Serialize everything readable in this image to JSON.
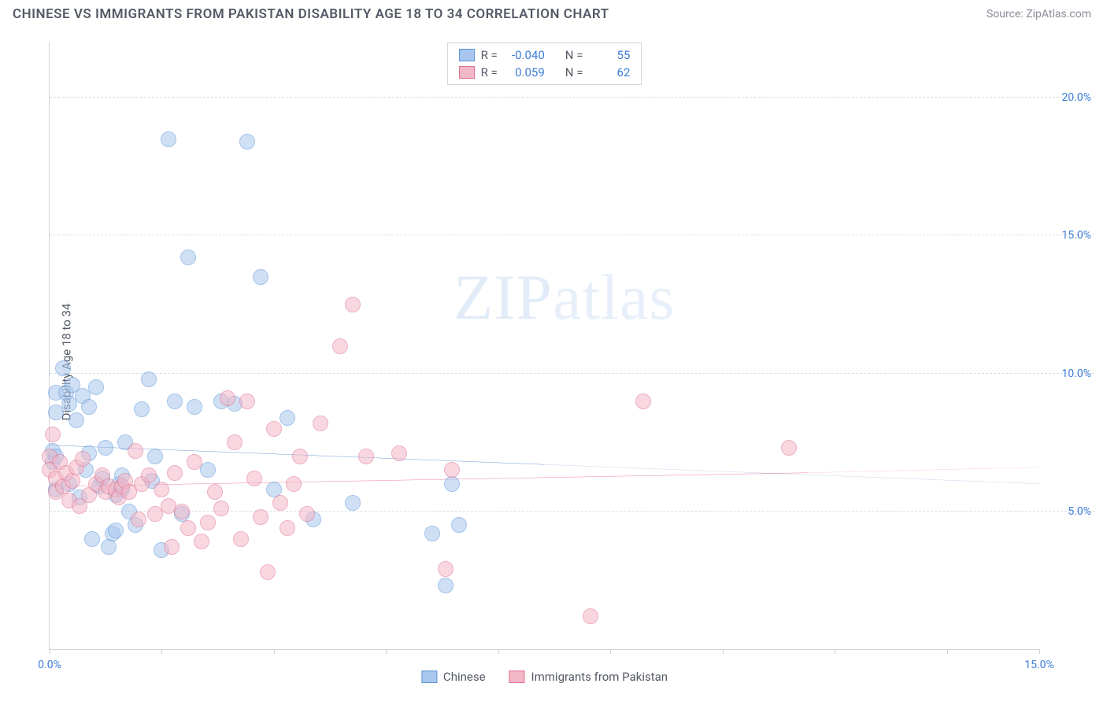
{
  "title": "CHINESE VS IMMIGRANTS FROM PAKISTAN DISABILITY AGE 18 TO 34 CORRELATION CHART",
  "source": "Source: ZipAtlas.com",
  "ylabel": "Disability Age 18 to 34",
  "watermark_a": "ZIP",
  "watermark_b": "atlas",
  "chart": {
    "type": "scatter",
    "xlim": [
      0,
      15
    ],
    "ylim": [
      0,
      22
    ],
    "x_ticks": [
      0,
      1.7,
      3.4,
      5.1,
      6.8,
      8.5,
      10.2,
      11.9,
      13.6,
      15
    ],
    "x_tick_labels": {
      "0": "0.0%",
      "15": "15.0%"
    },
    "y_gridlines": [
      5,
      10,
      15,
      20
    ],
    "y_tick_labels": {
      "5": "5.0%",
      "10": "10.0%",
      "15": "15.0%",
      "20": "20.0%"
    },
    "grid_color": "#d9dde4",
    "axis_color": "#ccd0d8",
    "background_color": "#ffffff",
    "tick_label_color": "#3b7dd8",
    "marker_radius": 10,
    "marker_opacity": 0.55,
    "series": [
      {
        "id": "chinese",
        "label": "Chinese",
        "color_fill": "#a9c7ee",
        "color_stroke": "#5b93d6",
        "trend_color": "#2f6fc7",
        "r_label": "R =",
        "r_value": "-0.040",
        "n_label": "N =",
        "n_value": "55",
        "trend": {
          "x1": 0,
          "y1": 7.4,
          "x2_solid": 7.5,
          "y2_solid": 6.7,
          "x2": 15,
          "y2": 6.0
        },
        "points": [
          [
            0.05,
            7.2
          ],
          [
            0.05,
            6.8
          ],
          [
            0.1,
            9.3
          ],
          [
            0.1,
            8.6
          ],
          [
            0.1,
            7.0
          ],
          [
            0.1,
            5.8
          ],
          [
            0.2,
            10.2
          ],
          [
            0.25,
            9.3
          ],
          [
            0.3,
            8.9
          ],
          [
            0.3,
            6.0
          ],
          [
            0.35,
            9.6
          ],
          [
            0.4,
            8.3
          ],
          [
            0.45,
            5.5
          ],
          [
            0.5,
            9.2
          ],
          [
            0.55,
            6.5
          ],
          [
            0.6,
            8.8
          ],
          [
            0.6,
            7.1
          ],
          [
            0.65,
            4.0
          ],
          [
            0.7,
            9.5
          ],
          [
            0.75,
            5.9
          ],
          [
            0.8,
            6.2
          ],
          [
            0.85,
            7.3
          ],
          [
            0.9,
            3.7
          ],
          [
            0.95,
            4.2
          ],
          [
            1.0,
            5.6
          ],
          [
            1.0,
            4.3
          ],
          [
            1.05,
            6.0
          ],
          [
            1.1,
            5.8
          ],
          [
            1.1,
            6.3
          ],
          [
            1.15,
            7.5
          ],
          [
            1.2,
            5.0
          ],
          [
            1.3,
            4.5
          ],
          [
            1.4,
            8.7
          ],
          [
            1.5,
            9.8
          ],
          [
            1.55,
            6.1
          ],
          [
            1.6,
            7.0
          ],
          [
            1.7,
            3.6
          ],
          [
            1.8,
            18.5
          ],
          [
            1.9,
            9.0
          ],
          [
            2.0,
            4.9
          ],
          [
            2.1,
            14.2
          ],
          [
            2.2,
            8.8
          ],
          [
            2.4,
            6.5
          ],
          [
            2.6,
            9.0
          ],
          [
            2.8,
            8.9
          ],
          [
            3.0,
            18.4
          ],
          [
            3.2,
            13.5
          ],
          [
            3.4,
            5.8
          ],
          [
            3.6,
            8.4
          ],
          [
            4.0,
            4.7
          ],
          [
            4.6,
            5.3
          ],
          [
            5.8,
            4.2
          ],
          [
            6.0,
            2.3
          ],
          [
            6.1,
            6.0
          ],
          [
            6.2,
            4.5
          ]
        ]
      },
      {
        "id": "pakistan",
        "label": "Immigrants from Pakistan",
        "color_fill": "#f3b8c7",
        "color_stroke": "#e06f8f",
        "trend_color": "#e94b7a",
        "r_label": "R =",
        "r_value": "0.059",
        "n_label": "N =",
        "n_value": "62",
        "trend": {
          "x1": 0,
          "y1": 5.9,
          "x2_solid": 11.5,
          "y2_solid": 6.4,
          "x2": 15,
          "y2": 6.6
        },
        "points": [
          [
            0.0,
            7.0
          ],
          [
            0.0,
            6.5
          ],
          [
            0.05,
            7.8
          ],
          [
            0.1,
            6.2
          ],
          [
            0.1,
            5.7
          ],
          [
            0.15,
            6.8
          ],
          [
            0.2,
            5.9
          ],
          [
            0.25,
            6.4
          ],
          [
            0.3,
            5.4
          ],
          [
            0.35,
            6.1
          ],
          [
            0.4,
            6.6
          ],
          [
            0.45,
            5.2
          ],
          [
            0.5,
            6.9
          ],
          [
            0.6,
            5.6
          ],
          [
            0.7,
            6.0
          ],
          [
            0.8,
            6.3
          ],
          [
            0.85,
            5.7
          ],
          [
            0.9,
            5.9
          ],
          [
            1.0,
            5.8
          ],
          [
            1.05,
            5.5
          ],
          [
            1.1,
            5.9
          ],
          [
            1.15,
            6.1
          ],
          [
            1.2,
            5.7
          ],
          [
            1.3,
            7.2
          ],
          [
            1.35,
            4.7
          ],
          [
            1.4,
            6.0
          ],
          [
            1.5,
            6.3
          ],
          [
            1.6,
            4.9
          ],
          [
            1.7,
            5.8
          ],
          [
            1.8,
            5.2
          ],
          [
            1.85,
            3.7
          ],
          [
            1.9,
            6.4
          ],
          [
            2.0,
            5.0
          ],
          [
            2.1,
            4.4
          ],
          [
            2.2,
            6.8
          ],
          [
            2.3,
            3.9
          ],
          [
            2.4,
            4.6
          ],
          [
            2.5,
            5.7
          ],
          [
            2.6,
            5.1
          ],
          [
            2.7,
            9.1
          ],
          [
            2.8,
            7.5
          ],
          [
            2.9,
            4.0
          ],
          [
            3.0,
            9.0
          ],
          [
            3.1,
            6.2
          ],
          [
            3.2,
            4.8
          ],
          [
            3.3,
            2.8
          ],
          [
            3.4,
            8.0
          ],
          [
            3.5,
            5.3
          ],
          [
            3.6,
            4.4
          ],
          [
            3.7,
            6.0
          ],
          [
            3.8,
            7.0
          ],
          [
            3.9,
            4.9
          ],
          [
            4.1,
            8.2
          ],
          [
            4.4,
            11.0
          ],
          [
            4.6,
            12.5
          ],
          [
            4.8,
            7.0
          ],
          [
            5.3,
            7.1
          ],
          [
            6.0,
            2.9
          ],
          [
            6.1,
            6.5
          ],
          [
            8.2,
            1.2
          ],
          [
            9.0,
            9.0
          ],
          [
            11.2,
            7.3
          ]
        ]
      }
    ]
  }
}
